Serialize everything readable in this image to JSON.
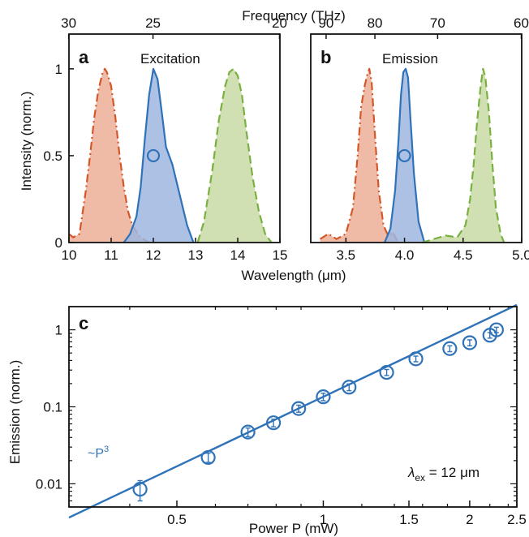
{
  "colors": {
    "red": "#d4572a",
    "redFill": "#ecaf96",
    "blue": "#2f72b8",
    "blueFill": "#9fb6df",
    "green": "#79b040",
    "greenFill": "#c9dba6"
  },
  "top_axis_label": "Frequency (THz)",
  "bottom_axis_label": "Wavelength (μm)",
  "y_axis_label": "Intensity (norm.)",
  "chart_data": [
    {
      "panel": "a",
      "title": "Excitation",
      "type": "area",
      "xlim": [
        10,
        15
      ],
      "ylim": [
        0,
        1.2
      ],
      "xticks": [
        10,
        11,
        12,
        13,
        14,
        15
      ],
      "yticks": [
        {
          "v": 0,
          "t": "0"
        },
        {
          "v": 0.5,
          "t": "0.5"
        },
        {
          "v": 1,
          "t": "1"
        }
      ],
      "top_ticks": [
        {
          "f": 30,
          "t": "30"
        },
        {
          "f": 25,
          "t": "25"
        },
        {
          "f": 20,
          "t": "20"
        }
      ],
      "marker": {
        "x": 12.0,
        "y": 0.5
      },
      "series": [
        {
          "color": "red",
          "dash": "10,4,2,4",
          "x": [
            10,
            10.1,
            10.25,
            10.4,
            10.5,
            10.6,
            10.7,
            10.8,
            10.85,
            10.9,
            11.0,
            11.1,
            11.2,
            11.3,
            11.4,
            11.5,
            11.6,
            11.7,
            11.8,
            11.9
          ],
          "y": [
            0.05,
            0.03,
            0.05,
            0.3,
            0.5,
            0.72,
            0.88,
            0.98,
            1.0,
            0.98,
            0.9,
            0.72,
            0.5,
            0.32,
            0.18,
            0.1,
            0.06,
            0.03,
            0.015,
            0
          ]
        },
        {
          "color": "blue",
          "dash": "",
          "x": [
            11.3,
            11.45,
            11.6,
            11.7,
            11.8,
            11.9,
            12.0,
            12.1,
            12.2,
            12.3,
            12.45,
            12.6,
            12.8,
            12.95
          ],
          "y": [
            0,
            0.05,
            0.15,
            0.32,
            0.6,
            0.85,
            1.0,
            0.94,
            0.75,
            0.55,
            0.45,
            0.3,
            0.1,
            0
          ]
        },
        {
          "color": "green",
          "dash": "10,5",
          "x": [
            13.05,
            13.2,
            13.4,
            13.55,
            13.7,
            13.8,
            13.9,
            14.0,
            14.1,
            14.2,
            14.35,
            14.5,
            14.65,
            14.8
          ],
          "y": [
            0,
            0.12,
            0.42,
            0.7,
            0.9,
            0.98,
            1.0,
            0.96,
            0.85,
            0.65,
            0.38,
            0.18,
            0.05,
            0
          ]
        }
      ]
    },
    {
      "panel": "b",
      "title": "Emission",
      "type": "area",
      "xlim": [
        3.2,
        5.0
      ],
      "ylim": [
        0,
        1.2
      ],
      "xticks": [
        {
          "v": 3.5,
          "t": "3.5"
        },
        {
          "v": 4.0,
          "t": "4.0"
        },
        {
          "v": 4.5,
          "t": "4.5"
        },
        {
          "v": 5.0,
          "t": "5.0"
        }
      ],
      "top_ticks": [
        {
          "f": 90,
          "t": "90"
        },
        {
          "f": 80,
          "t": "80"
        },
        {
          "f": 70,
          "t": "70"
        },
        {
          "f": 60,
          "t": "60"
        }
      ],
      "marker": {
        "x": 4.0,
        "y": 0.5
      },
      "series": [
        {
          "color": "red",
          "dash": "10,4,2,4",
          "x": [
            3.28,
            3.35,
            3.42,
            3.5,
            3.56,
            3.6,
            3.63,
            3.66,
            3.68,
            3.7,
            3.72,
            3.75,
            3.78,
            3.82,
            3.86,
            3.9,
            3.93,
            3.96
          ],
          "y": [
            0.02,
            0.05,
            0.02,
            0.05,
            0.2,
            0.5,
            0.78,
            0.9,
            0.96,
            1.0,
            0.92,
            0.6,
            0.3,
            0.1,
            0.04,
            0.06,
            0.02,
            0
          ]
        },
        {
          "color": "blue",
          "dash": "",
          "x": [
            3.83,
            3.88,
            3.92,
            3.95,
            3.97,
            3.99,
            4.01,
            4.03,
            4.05,
            4.08,
            4.12,
            4.17
          ],
          "y": [
            0,
            0.08,
            0.3,
            0.6,
            0.85,
            0.98,
            1.0,
            0.95,
            0.72,
            0.4,
            0.12,
            0
          ]
        },
        {
          "color": "green",
          "dash": "10,5",
          "x": [
            4.15,
            4.25,
            4.35,
            4.45,
            4.52,
            4.56,
            4.59,
            4.62,
            4.65,
            4.67,
            4.69,
            4.72,
            4.75,
            4.78,
            4.82,
            4.85
          ],
          "y": [
            0,
            0.02,
            0.04,
            0.03,
            0.1,
            0.25,
            0.45,
            0.7,
            0.9,
            1.0,
            0.95,
            0.75,
            0.45,
            0.2,
            0.05,
            0
          ]
        }
      ]
    },
    {
      "panel": "c",
      "type": "scatter",
      "xlabel": "Power P (mW)",
      "ylabel": "Emission (norm.)",
      "xscale": "log",
      "yscale": "log",
      "xlim": [
        0.3,
        2.5
      ],
      "ylim": [
        0.005,
        2
      ],
      "xticks": [
        {
          "v": 0.5,
          "t": "0.5"
        },
        {
          "v": 1,
          "t": "1"
        },
        {
          "v": 1.5,
          "t": "1.5"
        },
        {
          "v": 2,
          "t": "2"
        },
        {
          "v": 2.5,
          "t": "2.5"
        }
      ],
      "yticks": [
        {
          "v": 0.01,
          "t": "0.01"
        },
        {
          "v": 0.1,
          "t": "0.1"
        },
        {
          "v": 1,
          "t": "1"
        }
      ],
      "points": {
        "x": [
          0.42,
          0.58,
          0.7,
          0.79,
          0.89,
          1.0,
          1.13,
          1.35,
          1.55,
          1.82,
          2.0,
          2.2,
          2.27
        ],
        "y": [
          0.0085,
          0.022,
          0.047,
          0.062,
          0.095,
          0.135,
          0.18,
          0.28,
          0.42,
          0.57,
          0.68,
          0.85,
          1.0
        ],
        "err": [
          0.0025,
          0.003,
          0.006,
          0.007,
          0.01,
          0.015,
          0.018,
          0.025,
          0.035,
          0.05,
          0.06,
          0.07,
          0.08
        ]
      },
      "fit": {
        "label_base": "~P",
        "label_exp": "3",
        "exponent": 3,
        "x_range": [
          0.3,
          2.5
        ],
        "anchor": {
          "x": 1.0,
          "y": 0.135
        }
      },
      "annotation": {
        "lambda": "λ",
        "sub": "ex",
        "rest": " = 12 μm"
      }
    }
  ]
}
